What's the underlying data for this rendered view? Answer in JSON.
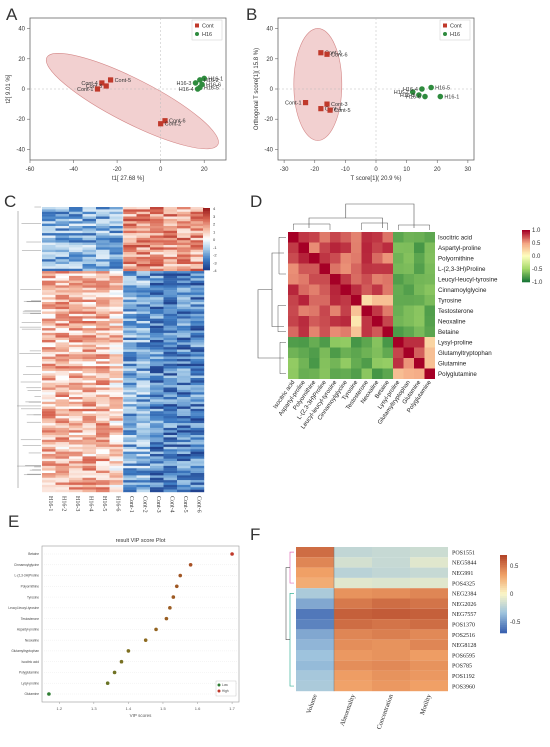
{
  "panels": {
    "A": {
      "letter": "A",
      "xlabel": "t1[ 27.68 %]",
      "ylabel": "t2[ 9.01 %]",
      "xticks": [
        "-60",
        "-40",
        "-20",
        "0",
        "20"
      ],
      "yticks": [
        "40",
        "20",
        "0",
        "-20",
        "-40"
      ],
      "legend": [
        "Cont",
        "H16"
      ]
    },
    "B": {
      "letter": "B",
      "xlabel": "T score[1]( 20.9 %)",
      "ylabel": "Orthogonal T score[1]( 15.8 %)",
      "xticks": [
        "-30",
        "-20",
        "-10",
        "0",
        "10",
        "20",
        "30"
      ],
      "yticks": [
        "40",
        "20",
        "0",
        "-20",
        "-40"
      ],
      "legend": [
        "Cont",
        "H16"
      ]
    },
    "C": {
      "letter": "C"
    },
    "D": {
      "letter": "D"
    },
    "E": {
      "letter": "E",
      "title": "result VIP score Plot",
      "xlabel": "VIP scores",
      "legend": [
        "Low",
        "High"
      ]
    },
    "F": {
      "letter": "F"
    }
  },
  "chart_data": [
    {
      "panel": "A",
      "type": "scatter",
      "xlabel": "t1[ 27.68 %]",
      "ylabel": "t2[ 9.01 %]",
      "xlim": [
        -60,
        30
      ],
      "ylim": [
        -47,
        47
      ],
      "series": [
        {
          "name": "Cont",
          "color": "#c0392b",
          "points": [
            {
              "label": "Cont-5",
              "x": -23,
              "y": 6
            },
            {
              "label": "Cont-4",
              "x": -27,
              "y": 4
            },
            {
              "label": "Cont-3",
              "x": -25,
              "y": 2
            },
            {
              "label": "Cont-1",
              "x": -29,
              "y": 0
            },
            {
              "label": "Cont-6",
              "x": 2,
              "y": -21
            },
            {
              "label": "Cont-2",
              "x": 0,
              "y": -23
            }
          ]
        },
        {
          "name": "H16",
          "color": "#2e8b3e",
          "points": [
            {
              "label": "H16-1",
              "x": 20,
              "y": 7
            },
            {
              "label": "H16-2",
              "x": 18,
              "y": 6
            },
            {
              "label": "H16-3",
              "x": 16,
              "y": 4
            },
            {
              "label": "H16-6",
              "x": 19,
              "y": 3
            },
            {
              "label": "H16-5",
              "x": 18,
              "y": 1
            },
            {
              "label": "H16-4",
              "x": 17,
              "y": 0
            }
          ]
        }
      ]
    },
    {
      "panel": "B",
      "type": "scatter",
      "xlabel": "T score[1]( 20.9 %)",
      "ylabel": "Orthogonal T score[1]( 15.8 %)",
      "xlim": [
        -32,
        32
      ],
      "ylim": [
        -47,
        47
      ],
      "series": [
        {
          "name": "Cont",
          "color": "#c0392b",
          "points": [
            {
              "label": "Cont-2",
              "x": -18,
              "y": 24
            },
            {
              "label": "Cont-6",
              "x": -16,
              "y": 23
            },
            {
              "label": "Cont-1",
              "x": -23,
              "y": -9
            },
            {
              "label": "Cont-3",
              "x": -16,
              "y": -10
            },
            {
              "label": "Cont-4",
              "x": -18,
              "y": -13
            },
            {
              "label": "Cont-5",
              "x": -15,
              "y": -14
            }
          ]
        },
        {
          "name": "H16",
          "color": "#2e8b3e",
          "points": [
            {
              "label": "H16-2",
              "x": 12,
              "y": -2
            },
            {
              "label": "H16-4",
              "x": 15,
              "y": 0
            },
            {
              "label": "H16-5",
              "x": 18,
              "y": 1
            },
            {
              "label": "H16-3",
              "x": 14,
              "y": -4
            },
            {
              "label": "H16-6",
              "x": 16,
              "y": -5
            },
            {
              "label": "H16-1",
              "x": 21,
              "y": -5
            }
          ]
        }
      ]
    },
    {
      "panel": "C",
      "type": "heatmap",
      "columns": [
        "H16-1",
        "H16-2",
        "H16-3",
        "H16-4",
        "H16-5",
        "H16-6",
        "Cont-1",
        "Cont-2",
        "Cont-3",
        "Cont-4",
        "Cont-5",
        "Cont-6"
      ],
      "colorbar_ticks": [
        "4",
        "3",
        "2",
        "1",
        "0",
        "-1",
        "-2",
        "-3",
        "-4"
      ],
      "colors": [
        "#1f4fa0",
        "#ffffff",
        "#b2182b"
      ]
    },
    {
      "panel": "D",
      "type": "heatmap",
      "labels": [
        "Isocitric acid",
        "Aspartyl-proline",
        "Polyornithine",
        "L-(2,3-3H)Proline",
        "Leucyl-leucyl-tyrosine",
        "Cinnamoylglycine",
        "Tyrosine",
        "Testosterone",
        "Neoxaline",
        "Betaine",
        "Lysyl-proline",
        "Glutamyltryptophan",
        "Glutamine",
        "Polyglutamine"
      ],
      "colorbar_ticks": [
        "1.0",
        "0.5",
        "0.0",
        "-0.5",
        "-1.0"
      ],
      "colors": [
        "#1b7837",
        "#ffffbf",
        "#a50026"
      ]
    },
    {
      "panel": "E",
      "type": "scatter",
      "title": "result VIP score Plot",
      "xlabel": "VIP scores",
      "xticks": [
        "1.2",
        "1.3",
        "1.4",
        "1.5",
        "1.6",
        "1.7"
      ],
      "xlim": [
        1.15,
        1.72
      ],
      "categories": [
        "Betaine",
        "Cinnamoylglycine",
        "L-(2,3-3H)Proline",
        "Polyornithine",
        "Tyrosine",
        "Leucyl-leucyl-tyrosine",
        "Testosterone",
        "Aspartyl-proline",
        "Neoxaline",
        "Glutamyltryptophan",
        "Isocitric acid",
        "Polyglutamine",
        "Lysyl-proline",
        "Glutamine"
      ],
      "values": [
        1.7,
        1.58,
        1.55,
        1.54,
        1.53,
        1.52,
        1.51,
        1.48,
        1.45,
        1.4,
        1.38,
        1.36,
        1.34,
        1.17
      ]
    },
    {
      "panel": "F",
      "type": "heatmap",
      "columns": [
        "Volume",
        "Abnormality",
        "Concentration",
        "Motility"
      ],
      "rows": [
        "POS1551",
        "NEG5844",
        "NEG991",
        "POS4325",
        "NEG2384",
        "NEG2026",
        "NEG7557",
        "POS1370",
        "POS2516",
        "NEG8128",
        "POS6595",
        "POS785",
        "POS1192",
        "POS3960"
      ],
      "colorbar_ticks": [
        "0.5",
        "0",
        "-0.5"
      ],
      "values": [
        [
          0.55,
          -0.22,
          -0.2,
          -0.18
        ],
        [
          0.45,
          -0.15,
          -0.2,
          -0.1
        ],
        [
          0.35,
          -0.25,
          -0.22,
          -0.2
        ],
        [
          0.3,
          -0.1,
          -0.12,
          -0.1
        ],
        [
          -0.3,
          0.4,
          0.42,
          0.45
        ],
        [
          -0.45,
          0.5,
          0.55,
          0.52
        ],
        [
          -0.62,
          0.6,
          0.62,
          0.6
        ],
        [
          -0.58,
          0.55,
          0.52,
          0.55
        ],
        [
          -0.45,
          0.45,
          0.48,
          0.44
        ],
        [
          -0.4,
          0.42,
          0.4,
          0.45
        ],
        [
          -0.35,
          0.38,
          0.4,
          0.36
        ],
        [
          -0.38,
          0.42,
          0.44,
          0.4
        ],
        [
          -0.32,
          0.36,
          0.4,
          0.38
        ],
        [
          -0.3,
          0.34,
          0.38,
          0.35
        ]
      ]
    }
  ]
}
